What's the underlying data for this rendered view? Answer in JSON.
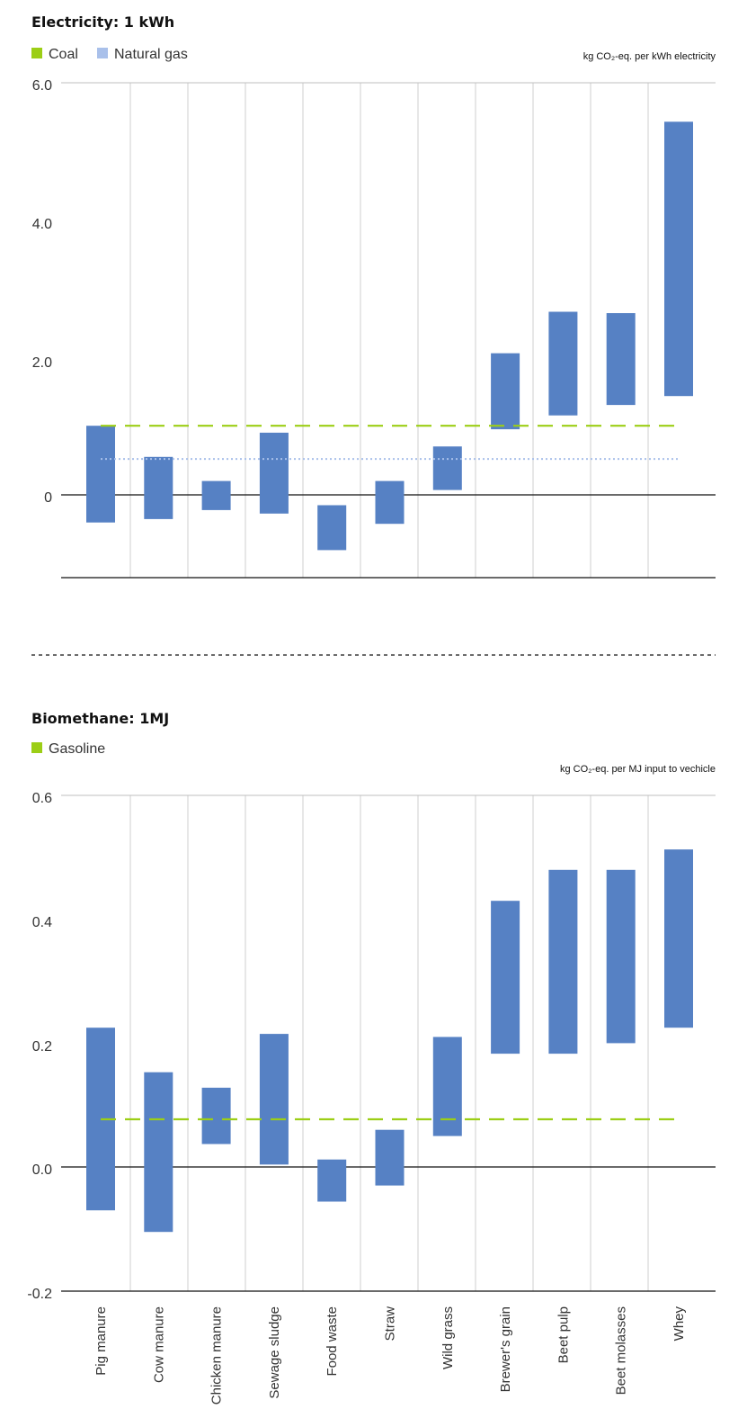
{
  "colors": {
    "bar": "#5681c4",
    "coal": "#9cce16",
    "natural_gas": "#a9c0ea",
    "gasoline": "#9cce16",
    "grid": "#cfcfcf",
    "axis": "#111111"
  },
  "chart_data": [
    {
      "type": "bar",
      "subtype": "floating-range",
      "title": "Electricity: 1 kWh",
      "unit_label": "kg CO₂-eq. per kWh electricity",
      "legend": [
        {
          "label": "Coal",
          "color": "#9cce16"
        },
        {
          "label": "Natural gas",
          "color": "#a9c0ea"
        }
      ],
      "legend_position": "top-left",
      "categories": [
        "Pig manure",
        "Cow manure",
        "Chicken manure",
        "Sewage sludge",
        "Food waste",
        "Straw",
        "Wild grass",
        "Brewer's grain",
        "Beet pulp",
        "Beet molasses",
        "Whey"
      ],
      "ranges": [
        [
          -0.4,
          1.0
        ],
        [
          -0.35,
          0.55
        ],
        [
          -0.22,
          0.2
        ],
        [
          -0.27,
          0.9
        ],
        [
          -0.8,
          -0.15
        ],
        [
          -0.42,
          0.2
        ],
        [
          0.07,
          0.7
        ],
        [
          0.95,
          2.05
        ],
        [
          1.15,
          2.65
        ],
        [
          1.3,
          2.63
        ],
        [
          1.43,
          5.4
        ]
      ],
      "reference_lines": [
        {
          "name": "Coal",
          "value": 1.0,
          "style": "dashed"
        },
        {
          "name": "Natural gas",
          "value": 0.52,
          "style": "dotted"
        }
      ],
      "yticks": [
        "6.0",
        "4.0",
        "2.0",
        "0"
      ],
      "ylim": [
        -1.2,
        6.0
      ],
      "grid": true
    },
    {
      "type": "bar",
      "subtype": "floating-range",
      "title": "Biomethane: 1MJ",
      "unit_label": "kg CO₂-eq. per MJ input to vechicle",
      "legend": [
        {
          "label": "Gasoline",
          "color": "#9cce16"
        }
      ],
      "legend_position": "top-left",
      "categories": [
        "Pig manure",
        "Cow manure",
        "Chicken manure",
        "Sewage sludge",
        "Food waste",
        "Straw",
        "Wild grass",
        "Brewer's grain",
        "Beet pulp",
        "Beet molasses",
        "Whey"
      ],
      "ranges": [
        [
          -0.07,
          0.225
        ],
        [
          -0.105,
          0.153
        ],
        [
          0.037,
          0.128
        ],
        [
          0.004,
          0.215
        ],
        [
          -0.056,
          0.012
        ],
        [
          -0.03,
          0.06
        ],
        [
          0.05,
          0.21
        ],
        [
          0.183,
          0.43
        ],
        [
          0.183,
          0.48
        ],
        [
          0.2,
          0.48
        ],
        [
          0.225,
          0.513
        ]
      ],
      "reference_lines": [
        {
          "name": "Gasoline",
          "value": 0.077,
          "style": "dashed"
        }
      ],
      "yticks": [
        "0.6",
        "0.4",
        "0.2",
        "0.0",
        "-0.2"
      ],
      "ylim": [
        -0.2,
        0.6
      ],
      "grid": true
    }
  ]
}
